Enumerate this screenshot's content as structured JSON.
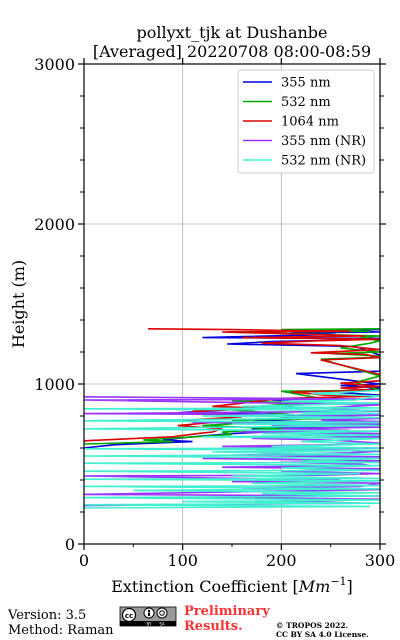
{
  "chart_data": {
    "type": "line",
    "title": "pollyxt_tjk at Dushanbe",
    "subtitle": "[Averaged] 20220708 08:00-08:59",
    "xlabel": "Extinction Coefficient [Mm⁻¹]",
    "xlabel_main": "Extinction Coefficient [",
    "xlabel_unit": "Mm",
    "xlabel_exp": "−1",
    "xlabel_end": "]",
    "ylabel": "Height (m)",
    "xlim": [
      0,
      300
    ],
    "ylim": [
      0,
      3000
    ],
    "x_ticks": [
      0,
      100,
      200,
      300
    ],
    "y_ticks": [
      0,
      1000,
      2000,
      3000
    ],
    "grid": true,
    "legend_position": "top-right",
    "series": [
      {
        "name": "355 nm",
        "color": "#0000dd",
        "points": [
          [
            300,
            1340
          ],
          [
            245,
            1336
          ],
          [
            300,
            1325
          ],
          [
            210,
            1320
          ],
          [
            255,
            1310
          ],
          [
            120,
            1290
          ],
          [
            300,
            1285
          ],
          [
            265,
            1275
          ],
          [
            190,
            1265
          ],
          [
            145,
            1250
          ],
          [
            275,
            1235
          ],
          [
            300,
            1180
          ],
          [
            300,
            1100
          ],
          [
            300,
            1080
          ],
          [
            215,
            1065
          ],
          [
            300,
            1000
          ],
          [
            260,
            990
          ],
          [
            300,
            975
          ],
          [
            280,
            960
          ],
          [
            240,
            955
          ],
          [
            300,
            930
          ],
          [
            190,
            900
          ],
          [
            240,
            880
          ],
          [
            210,
            865
          ],
          [
            180,
            850
          ],
          [
            150,
            840
          ],
          [
            95,
            820
          ],
          [
            200,
            810
          ],
          [
            220,
            790
          ],
          [
            170,
            775
          ],
          [
            240,
            760
          ],
          [
            280,
            750
          ],
          [
            300,
            745
          ],
          [
            250,
            735
          ],
          [
            170,
            720
          ],
          [
            200,
            705
          ],
          [
            150,
            690
          ],
          [
            110,
            670
          ],
          [
            80,
            650
          ],
          [
            110,
            640
          ],
          [
            30,
            620
          ],
          [
            0,
            600
          ]
        ]
      },
      {
        "name": "532 nm",
        "color": "#00aa00",
        "points": [
          [
            300,
            1345
          ],
          [
            200,
            1340
          ],
          [
            290,
            1330
          ],
          [
            145,
            1325
          ],
          [
            300,
            1300
          ],
          [
            280,
            1290
          ],
          [
            300,
            1270
          ],
          [
            290,
            1255
          ],
          [
            260,
            1225
          ],
          [
            300,
            1200
          ],
          [
            250,
            1190
          ],
          [
            300,
            1175
          ],
          [
            290,
            1165
          ],
          [
            240,
            1155
          ],
          [
            300,
            1050
          ],
          [
            275,
            1010
          ],
          [
            300,
            960
          ],
          [
            200,
            955
          ],
          [
            240,
            910
          ],
          [
            150,
            895
          ],
          [
            220,
            880
          ],
          [
            175,
            860
          ],
          [
            145,
            840
          ],
          [
            190,
            820
          ],
          [
            230,
            800
          ],
          [
            260,
            785
          ],
          [
            150,
            775
          ],
          [
            175,
            760
          ],
          [
            120,
            740
          ],
          [
            200,
            720
          ],
          [
            140,
            700
          ],
          [
            150,
            685
          ],
          [
            100,
            665
          ],
          [
            60,
            650
          ],
          [
            90,
            640
          ],
          [
            0,
            625
          ]
        ]
      },
      {
        "name": "1064 nm",
        "color": "#dd0000",
        "points": [
          [
            65,
            1345
          ],
          [
            150,
            1340
          ],
          [
            200,
            1335
          ],
          [
            270,
            1330
          ],
          [
            140,
            1325
          ],
          [
            200,
            1315
          ],
          [
            285,
            1300
          ],
          [
            160,
            1290
          ],
          [
            300,
            1280
          ],
          [
            235,
            1270
          ],
          [
            180,
            1255
          ],
          [
            260,
            1240
          ],
          [
            300,
            1215
          ],
          [
            230,
            1195
          ],
          [
            285,
            1185
          ],
          [
            300,
            1165
          ],
          [
            240,
            1150
          ],
          [
            300,
            1060
          ],
          [
            300,
            1020
          ],
          [
            260,
            1005
          ],
          [
            300,
            985
          ],
          [
            260,
            975
          ],
          [
            295,
            960
          ],
          [
            210,
            950
          ],
          [
            245,
            930
          ],
          [
            300,
            925
          ],
          [
            200,
            910
          ],
          [
            160,
            880
          ],
          [
            130,
            860
          ],
          [
            180,
            850
          ],
          [
            110,
            830
          ],
          [
            145,
            810
          ],
          [
            160,
            795
          ],
          [
            120,
            780
          ],
          [
            100,
            770
          ],
          [
            130,
            760
          ],
          [
            95,
            740
          ],
          [
            140,
            720
          ],
          [
            130,
            700
          ],
          [
            115,
            690
          ],
          [
            90,
            670
          ],
          [
            0,
            645
          ]
        ]
      },
      {
        "name": "355 nm (NR)",
        "color": "#9933ff",
        "points": [
          [
            0,
            920
          ],
          [
            300,
            905
          ],
          [
            0,
            900
          ],
          [
            300,
            870
          ],
          [
            240,
            850
          ],
          [
            300,
            830
          ],
          [
            0,
            815
          ],
          [
            300,
            805
          ],
          [
            200,
            795
          ],
          [
            300,
            785
          ],
          [
            240,
            775
          ],
          [
            300,
            765
          ],
          [
            110,
            760
          ],
          [
            300,
            750
          ],
          [
            190,
            740
          ],
          [
            300,
            730
          ],
          [
            200,
            720
          ],
          [
            270,
            710
          ],
          [
            160,
            700
          ],
          [
            300,
            690
          ],
          [
            220,
            680
          ],
          [
            300,
            670
          ],
          [
            170,
            660
          ],
          [
            250,
            650
          ],
          [
            300,
            630
          ],
          [
            250,
            620
          ],
          [
            140,
            610
          ],
          [
            300,
            600
          ],
          [
            200,
            590
          ],
          [
            300,
            580
          ],
          [
            270,
            570
          ],
          [
            150,
            555
          ],
          [
            300,
            545
          ],
          [
            120,
            535
          ],
          [
            300,
            520
          ],
          [
            200,
            510
          ],
          [
            280,
            500
          ],
          [
            290,
            490
          ],
          [
            140,
            480
          ],
          [
            300,
            470
          ],
          [
            200,
            455
          ],
          [
            300,
            440
          ],
          [
            240,
            430
          ],
          [
            0,
            425
          ],
          [
            260,
            400
          ],
          [
            150,
            390
          ],
          [
            300,
            380
          ],
          [
            280,
            360
          ],
          [
            160,
            350
          ],
          [
            300,
            340
          ],
          [
            200,
            330
          ],
          [
            0,
            310
          ],
          [
            300,
            300
          ],
          [
            100,
            290
          ],
          [
            300,
            280
          ],
          [
            200,
            270
          ],
          [
            280,
            255
          ],
          [
            0,
            240
          ]
        ]
      },
      {
        "name": "532 nm (NR)",
        "color": "#40f0d0",
        "points": [
          [
            300,
            960
          ],
          [
            230,
            940
          ],
          [
            300,
            925
          ],
          [
            275,
            900
          ],
          [
            200,
            890
          ],
          [
            300,
            880
          ],
          [
            160,
            860
          ],
          [
            300,
            850
          ],
          [
            0,
            845
          ],
          [
            300,
            835
          ],
          [
            220,
            820
          ],
          [
            300,
            815
          ],
          [
            120,
            800
          ],
          [
            300,
            790
          ],
          [
            0,
            770
          ],
          [
            300,
            760
          ],
          [
            150,
            750
          ],
          [
            300,
            740
          ],
          [
            0,
            720
          ],
          [
            300,
            705
          ],
          [
            180,
            690
          ],
          [
            300,
            680
          ],
          [
            120,
            670
          ],
          [
            300,
            660
          ],
          [
            220,
            640
          ],
          [
            300,
            625
          ],
          [
            190,
            610
          ],
          [
            300,
            600
          ],
          [
            0,
            595
          ],
          [
            300,
            585
          ],
          [
            130,
            575
          ],
          [
            300,
            560
          ],
          [
            0,
            550
          ],
          [
            300,
            535
          ],
          [
            220,
            520
          ],
          [
            300,
            510
          ],
          [
            0,
            505
          ],
          [
            300,
            490
          ],
          [
            200,
            475
          ],
          [
            300,
            460
          ],
          [
            0,
            455
          ],
          [
            280,
            440
          ],
          [
            150,
            425
          ],
          [
            300,
            410
          ],
          [
            0,
            405
          ],
          [
            300,
            395
          ],
          [
            170,
            380
          ],
          [
            300,
            365
          ],
          [
            0,
            360
          ],
          [
            300,
            345
          ],
          [
            50,
            335
          ],
          [
            300,
            320
          ],
          [
            180,
            315
          ],
          [
            300,
            300
          ],
          [
            0,
            290
          ],
          [
            300,
            275
          ],
          [
            100,
            265
          ],
          [
            300,
            255
          ],
          [
            0,
            245
          ],
          [
            290,
            235
          ],
          [
            0,
            225
          ]
        ]
      }
    ]
  },
  "footer": {
    "version": "Version: 3.5",
    "method": "Method: Raman",
    "preliminary_line1": "Preliminary",
    "preliminary_line2": "Results.",
    "copyright_line1": "© TROPOS 2022.",
    "copyright_line2": "CC BY SA 4.0 License.",
    "license_badge": {
      "icon": "cc-by-sa-badge",
      "left_text": "BY",
      "right_text": "SA",
      "color": "#555555"
    },
    "preliminary_color": "#ff3333"
  }
}
